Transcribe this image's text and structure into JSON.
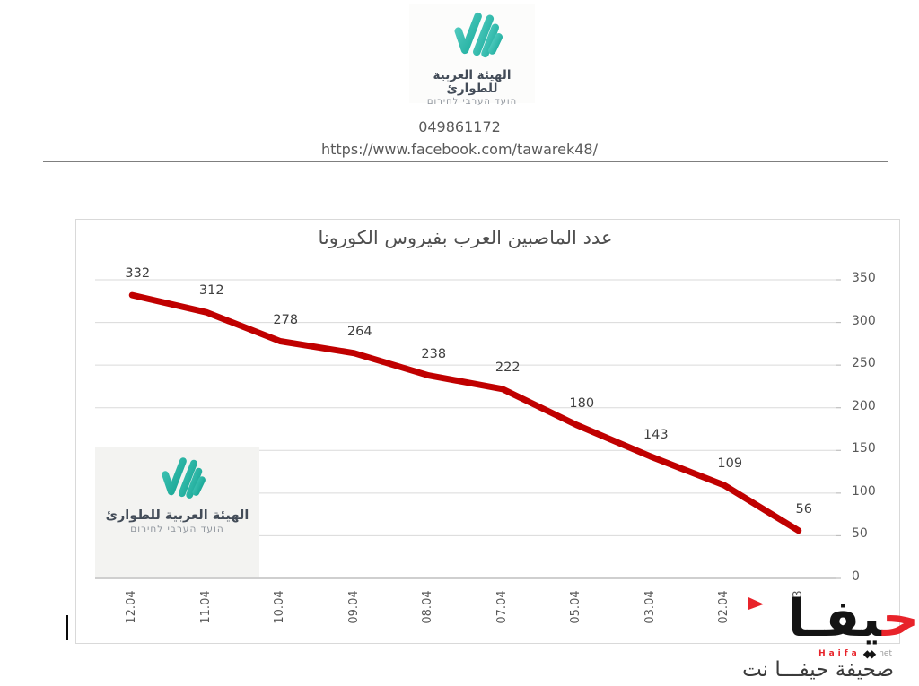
{
  "header": {
    "logo": {
      "name_ar": "الهيئة العربية للطوارئ",
      "name_he": "הועד הערבי לחירום"
    },
    "phone": "049861172",
    "facebook_url": "https://www.facebook.com/tawarek48/"
  },
  "chart_data": {
    "type": "line",
    "title": "عدد الماصبين العرب بفيروس الكورونا",
    "categories": [
      "12.04",
      "11.04",
      "10.04",
      "09.04",
      "08.04",
      "07.04",
      "05.04",
      "03.04",
      "02.04",
      "31.03"
    ],
    "values": [
      332,
      312,
      278,
      264,
      238,
      222,
      180,
      143,
      109,
      56
    ],
    "y_ticks": [
      350,
      300,
      250,
      200,
      150,
      100,
      50,
      0
    ],
    "ylim": [
      0,
      350
    ],
    "line_color": "#C00000",
    "grid": true,
    "legend": "none",
    "value_axis_side": "right",
    "data_labels": true,
    "category_label_rotation": -90
  },
  "chart_logo": {
    "name_ar": "الهيئة العربية للطوارئ",
    "name_he": "הועד הערבי לחירום"
  },
  "watermark": {
    "big_first": "ح",
    "big_rest": "يفـا",
    "brand_en": "Haifa",
    "bowtie": "◆◆",
    "brand_suffix": "net",
    "caption": "صحيفة حيفـــا نت"
  },
  "colors": {
    "line": "#C00000",
    "grid": "#dadada",
    "axis": "#bfbfbf",
    "teal_light": "#4AC8BC",
    "teal_dark": "#1CAC9C",
    "brand_red": "#E8232A"
  }
}
